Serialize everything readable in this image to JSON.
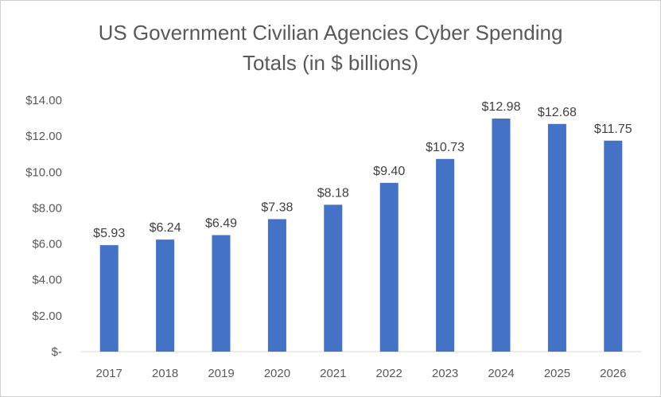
{
  "chart_data": {
    "type": "bar",
    "title_lines": [
      "US Government Civilian Agencies Cyber Spending",
      "Totals (in $ billions)"
    ],
    "categories": [
      "2017",
      "2018",
      "2019",
      "2020",
      "2021",
      "2022",
      "2023",
      "2024",
      "2025",
      "2026"
    ],
    "values": [
      5.93,
      6.24,
      6.49,
      7.38,
      8.18,
      9.4,
      10.73,
      12.98,
      12.68,
      11.75
    ],
    "data_labels": [
      "$5.93",
      "$6.24",
      "$6.49",
      "$7.38",
      "$8.18",
      "$9.40",
      "$10.73",
      "$12.98",
      "$12.68",
      "$11.75"
    ],
    "y_ticks": [
      0,
      2,
      4,
      6,
      8,
      10,
      12,
      14
    ],
    "y_tick_labels": [
      "$-",
      "$2.00",
      "$4.00",
      "$6.00",
      "$8.00",
      "$10.00",
      "$12.00",
      "$14.00"
    ],
    "ylim": [
      0,
      14
    ],
    "xlabel": "",
    "ylabel": "",
    "grid": false,
    "bar_color": "#4472c4"
  }
}
